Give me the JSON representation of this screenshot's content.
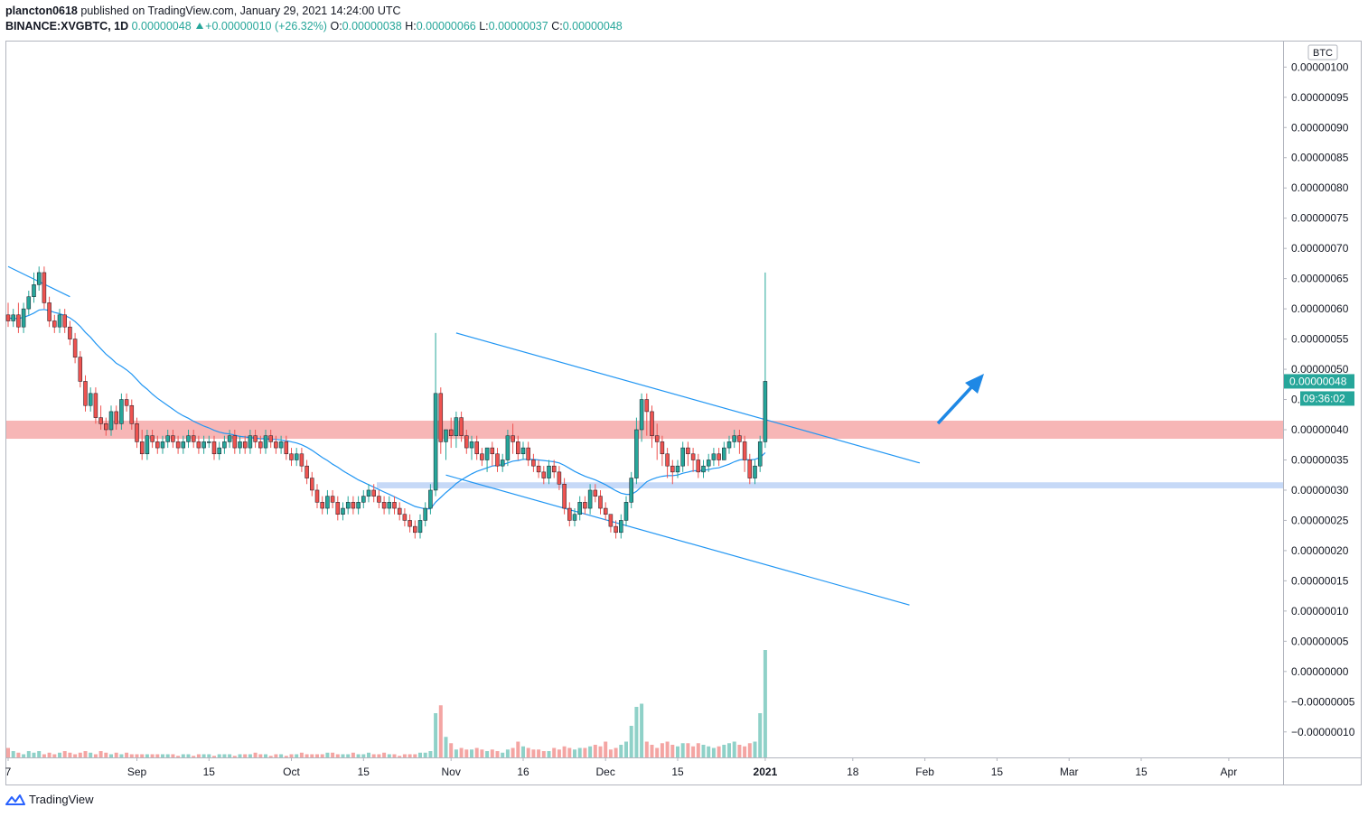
{
  "header": {
    "user": "plancton0618",
    "published_text": "published on TradingView.com, January 29, 2021 14:24:00 UTC",
    "symbol": "BINANCE:XVGBTC, 1D",
    "last": "0.00000048",
    "change": "+0.00000010 (+26.32%)",
    "o_label": "O:",
    "o_value": "0.00000038",
    "h_label": "H:",
    "h_value": "0.00000066",
    "l_label": "L:",
    "l_value": "0.00000037",
    "c_label": "C:",
    "c_value": "0.00000048"
  },
  "footer": {
    "brand": "TradingView"
  },
  "colors": {
    "up": "#26a69a",
    "down": "#ef5350",
    "ma": "#2196f3",
    "resistance_zone": "#f7b6b6",
    "support_zone": "#c6d9f7",
    "vol_up": "#8fd1c8",
    "vol_down": "#f4a5a3"
  },
  "chart_data": {
    "type": "candlestick",
    "currency_badge": "BTC",
    "y_unit_scale": "1e-8 BTC",
    "ylim": [
      -12,
      102
    ],
    "y_ticks": [
      100,
      95,
      90,
      85,
      80,
      75,
      70,
      65,
      60,
      55,
      50,
      45,
      40,
      35,
      30,
      25,
      20,
      15,
      10,
      5,
      0,
      -5,
      -10
    ],
    "y_tick_labels": [
      "0.00000100",
      "0.00000095",
      "0.00000090",
      "0.00000085",
      "0.00000080",
      "0.00000075",
      "0.00000070",
      "0.00000065",
      "0.00000060",
      "0.00000055",
      "0.00000050",
      "0.00000045",
      "0.00000040",
      "0.00000035",
      "0.00000030",
      "0.00000025",
      "0.00000020",
      "0.00000015",
      "0.00000010",
      "0.00000005",
      "0.00000000",
      "−0.00000005",
      "−0.00000010"
    ],
    "x_ticks": [
      {
        "day": 0,
        "label": "7",
        "bold": false
      },
      {
        "day": 25,
        "label": "Sep",
        "bold": false
      },
      {
        "day": 39,
        "label": "15",
        "bold": false
      },
      {
        "day": 55,
        "label": "Oct",
        "bold": false
      },
      {
        "day": 69,
        "label": "15",
        "bold": false
      },
      {
        "day": 86,
        "label": "Nov",
        "bold": false
      },
      {
        "day": 100,
        "label": "16",
        "bold": false
      },
      {
        "day": 116,
        "label": "Dec",
        "bold": false
      },
      {
        "day": 130,
        "label": "15",
        "bold": false
      },
      {
        "day": 147,
        "label": "2021",
        "bold": true
      },
      {
        "day": 164,
        "label": "18",
        "bold": false
      },
      {
        "day": 178,
        "label": "Feb",
        "bold": false
      },
      {
        "day": 192,
        "label": "15",
        "bold": false
      },
      {
        "day": 206,
        "label": "Mar",
        "bold": false
      },
      {
        "day": 220,
        "label": "15",
        "bold": false
      },
      {
        "day": 237,
        "label": "Apr",
        "bold": false
      }
    ],
    "last_price_label": "0.00000048",
    "countdown_label": "09:36:02",
    "closes": [
      58,
      59,
      57,
      60,
      62,
      64,
      66,
      61,
      58,
      57,
      59,
      57,
      55,
      52,
      48,
      44,
      46,
      42,
      41,
      40,
      43,
      41,
      45,
      44,
      41,
      38,
      36,
      39,
      38,
      37,
      38,
      39,
      38,
      37,
      38,
      39,
      38,
      37,
      38,
      38,
      36,
      37,
      38,
      39,
      37,
      38,
      37,
      39,
      38,
      37,
      39,
      38,
      37,
      38,
      36,
      35,
      36,
      34,
      32,
      30,
      28,
      27,
      29,
      28,
      26,
      27,
      28,
      27,
      28,
      29,
      30,
      29,
      28,
      27,
      28,
      27,
      26,
      25,
      24,
      23,
      25,
      27,
      30,
      46,
      38,
      40,
      39,
      42,
      39,
      37,
      38,
      36,
      35,
      37,
      36,
      34,
      35,
      39,
      38,
      36,
      37,
      35,
      34,
      33,
      32,
      34,
      33,
      31,
      27,
      25,
      26,
      28,
      27,
      30,
      29,
      27,
      26,
      24,
      23,
      25,
      28,
      32,
      40,
      45,
      43,
      39,
      38,
      36,
      34,
      33,
      34,
      37,
      36,
      35,
      33,
      34,
      35,
      36,
      35,
      37,
      38,
      39,
      38,
      35,
      32,
      34,
      38,
      48
    ],
    "opens": [
      59,
      58,
      59,
      57,
      60,
      62,
      64,
      66,
      61,
      58,
      57,
      59,
      57,
      55,
      52,
      48,
      44,
      46,
      42,
      41,
      40,
      43,
      41,
      45,
      44,
      41,
      38,
      36,
      39,
      38,
      37,
      38,
      39,
      38,
      37,
      38,
      39,
      38,
      37,
      38,
      38,
      36,
      37,
      38,
      39,
      37,
      38,
      37,
      39,
      38,
      37,
      39,
      38,
      37,
      38,
      36,
      35,
      36,
      34,
      32,
      30,
      28,
      27,
      29,
      28,
      26,
      27,
      28,
      27,
      28,
      29,
      30,
      29,
      28,
      27,
      28,
      27,
      26,
      25,
      24,
      23,
      25,
      27,
      30,
      46,
      38,
      40,
      39,
      42,
      39,
      37,
      38,
      36,
      35,
      37,
      36,
      34,
      35,
      39,
      38,
      36,
      37,
      35,
      34,
      33,
      32,
      34,
      33,
      31,
      27,
      25,
      26,
      28,
      27,
      30,
      29,
      27,
      26,
      24,
      23,
      25,
      28,
      32,
      40,
      45,
      43,
      39,
      38,
      36,
      34,
      33,
      34,
      37,
      36,
      35,
      33,
      34,
      35,
      36,
      35,
      37,
      38,
      39,
      38,
      35,
      32,
      34,
      38
    ],
    "highs": [
      61,
      60,
      61,
      61,
      63,
      66,
      67,
      67,
      62,
      59,
      60,
      60,
      58,
      56,
      53,
      49,
      47,
      47,
      44,
      42,
      44,
      44,
      46,
      46,
      45,
      42,
      40,
      40,
      40,
      39,
      39,
      40,
      40,
      39,
      39,
      40,
      40,
      39,
      39,
      39,
      39,
      38,
      39,
      40,
      40,
      39,
      39,
      40,
      40,
      39,
      40,
      40,
      39,
      39,
      39,
      37,
      37,
      37,
      35,
      33,
      31,
      29,
      30,
      30,
      29,
      28,
      29,
      29,
      29,
      30,
      31,
      31,
      30,
      29,
      29,
      29,
      28,
      27,
      26,
      25,
      26,
      28,
      31,
      56,
      47,
      40,
      42,
      43,
      43,
      40,
      39,
      39,
      37,
      37,
      38,
      37,
      36,
      40,
      41,
      39,
      38,
      38,
      36,
      35,
      34,
      35,
      35,
      34,
      32,
      28,
      27,
      29,
      29,
      31,
      31,
      30,
      28,
      26,
      25,
      26,
      29,
      33,
      42,
      46,
      46,
      44,
      41,
      39,
      37,
      35,
      35,
      38,
      38,
      37,
      36,
      35,
      36,
      37,
      37,
      38,
      39,
      40,
      40,
      39,
      36,
      35,
      39,
      66
    ],
    "lows": [
      57,
      57,
      56,
      56,
      59,
      61,
      63,
      60,
      57,
      56,
      56,
      56,
      54,
      51,
      47,
      43,
      43,
      41,
      40,
      39,
      39,
      40,
      40,
      43,
      40,
      37,
      35,
      35,
      37,
      36,
      36,
      37,
      37,
      36,
      36,
      37,
      37,
      36,
      36,
      37,
      35,
      35,
      36,
      37,
      36,
      36,
      36,
      36,
      37,
      36,
      36,
      37,
      36,
      36,
      35,
      34,
      34,
      33,
      31,
      29,
      27,
      26,
      26,
      27,
      25,
      25,
      26,
      26,
      26,
      27,
      28,
      28,
      27,
      26,
      26,
      26,
      25,
      24,
      23,
      22,
      22,
      24,
      26,
      29,
      36,
      35,
      37,
      37,
      38,
      36,
      35,
      35,
      34,
      33,
      34,
      33,
      33,
      34,
      36,
      35,
      35,
      34,
      33,
      32,
      31,
      31,
      32,
      30,
      26,
      24,
      24,
      25,
      26,
      26,
      28,
      26,
      25,
      23,
      22,
      22,
      24,
      27,
      31,
      38,
      39,
      37,
      35,
      34,
      32,
      31,
      32,
      33,
      34,
      33,
      32,
      32,
      33,
      34,
      34,
      35,
      36,
      37,
      36,
      33,
      31,
      31,
      33,
      37
    ],
    "ma": [
      58.5,
      58.4,
      58.4,
      58.6,
      58.9,
      59.3,
      59.8,
      59.9,
      59.7,
      59.4,
      59.2,
      58.9,
      58.5,
      57.9,
      57.1,
      56.1,
      55.3,
      54.3,
      53.4,
      52.5,
      51.8,
      51.0,
      50.5,
      49.9,
      49.2,
      48.3,
      47.4,
      46.7,
      45.9,
      45.2,
      44.6,
      44.0,
      43.4,
      42.8,
      42.3,
      41.9,
      41.4,
      41.0,
      40.6,
      40.3,
      39.9,
      39.6,
      39.4,
      39.3,
      39.1,
      38.9,
      38.8,
      38.7,
      38.6,
      38.5,
      38.5,
      38.4,
      38.4,
      38.3,
      38.2,
      38.0,
      37.8,
      37.5,
      37.1,
      36.6,
      36.0,
      35.4,
      34.9,
      34.3,
      33.8,
      33.2,
      32.7,
      32.2,
      31.7,
      31.3,
      30.9,
      30.5,
      30.1,
      29.7,
      29.3,
      28.9,
      28.5,
      28.1,
      27.7,
      27.3,
      27.1,
      26.9,
      26.9,
      28.0,
      28.8,
      29.6,
      30.3,
      31.1,
      31.7,
      32.2,
      32.7,
      33.1,
      33.4,
      33.7,
      34.0,
      34.1,
      34.2,
      34.5,
      34.8,
      34.9,
      35.1,
      35.1,
      35.1,
      35.0,
      34.9,
      34.8,
      34.7,
      34.5,
      34.1,
      33.6,
      33.1,
      32.7,
      32.3,
      32.0,
      31.7,
      31.3,
      30.9,
      30.4,
      29.9,
      29.5,
      29.3,
      29.3,
      29.8,
      30.6,
      31.4,
      31.8,
      32.1,
      32.3,
      32.4,
      32.4,
      32.5,
      32.8,
      33.0,
      33.2,
      33.2,
      33.3,
      33.4,
      33.6,
      33.7,
      34.0,
      34.3,
      34.7,
      35.0,
      35.1,
      35.0,
      35.1,
      35.4,
      36.2
    ],
    "volumes": [
      6,
      4,
      3,
      2,
      4,
      3,
      4,
      2,
      3,
      2,
      3,
      4,
      3,
      2,
      3,
      4,
      3,
      2,
      4,
      3,
      2,
      3,
      2,
      3,
      2,
      2,
      2,
      2,
      2,
      2,
      2,
      2,
      2,
      1,
      2,
      2,
      1,
      2,
      2,
      2,
      1,
      2,
      2,
      2,
      1,
      2,
      2,
      2,
      3,
      2,
      2,
      1,
      2,
      2,
      1,
      2,
      2,
      3,
      2,
      2,
      2,
      2,
      3,
      3,
      2,
      2,
      2,
      3,
      2,
      2,
      3,
      2,
      2,
      3,
      2,
      2,
      1,
      2,
      2,
      2,
      3,
      3,
      4,
      28,
      33,
      13,
      9,
      5,
      6,
      5,
      5,
      6,
      5,
      4,
      5,
      4,
      3,
      5,
      6,
      10,
      7,
      6,
      5,
      5,
      4,
      4,
      6,
      5,
      7,
      6,
      5,
      6,
      6,
      7,
      8,
      7,
      10,
      5,
      6,
      8,
      10,
      20,
      32,
      34,
      10,
      8,
      6,
      9,
      10,
      8,
      7,
      9,
      9,
      7,
      9,
      8,
      7,
      6,
      7,
      8,
      9,
      10,
      8,
      7,
      9,
      10,
      28,
      68
    ],
    "resistance_zone": [
      38.5,
      41.5
    ],
    "support_zone": [
      30.3,
      31.3
    ],
    "trendlines": [
      {
        "from": [
          0,
          67
        ],
        "to": [
          12,
          62
        ]
      },
      {
        "from": [
          87,
          56
        ],
        "to": [
          177,
          34.5
        ]
      },
      {
        "from": [
          85,
          32.5
        ],
        "to": [
          175,
          11
        ]
      }
    ]
  }
}
